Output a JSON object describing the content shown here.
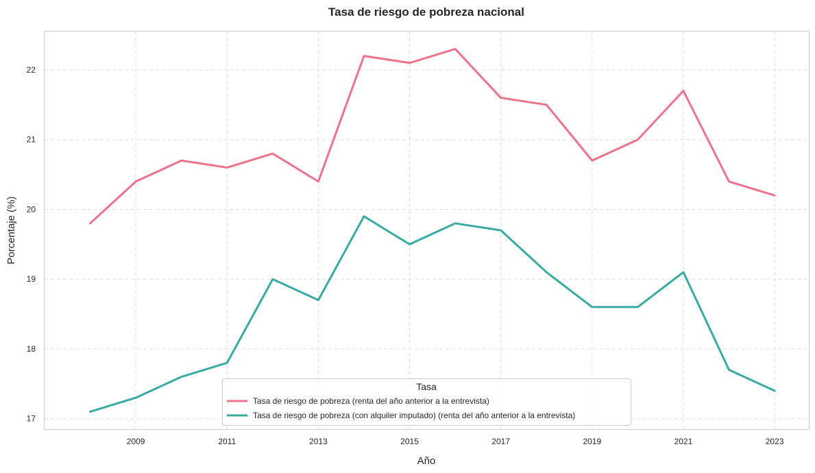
{
  "chart_data": {
    "type": "line",
    "title": "Tasa de riesgo de pobreza nacional",
    "xlabel": "Año",
    "ylabel": "Porcentaje (%)",
    "x": [
      2008,
      2009,
      2010,
      2011,
      2012,
      2013,
      2014,
      2015,
      2016,
      2017,
      2018,
      2019,
      2020,
      2021,
      2022,
      2023
    ],
    "xticks": [
      2009,
      2011,
      2013,
      2015,
      2017,
      2019,
      2021,
      2023
    ],
    "yticks": [
      17,
      18,
      19,
      20,
      21,
      22
    ],
    "xlim": [
      2007,
      2023.75
    ],
    "ylim": [
      16.85,
      22.55
    ],
    "grid": true,
    "legend": {
      "title": "Tasa",
      "placement": "bottom-center"
    },
    "series": [
      {
        "name": "Tasa de riesgo de pobreza (renta del año anterior a la entrevista)",
        "color": "#f0718a",
        "values": [
          19.8,
          20.4,
          20.7,
          20.6,
          20.8,
          20.4,
          22.2,
          22.1,
          22.3,
          21.6,
          21.5,
          20.7,
          21.0,
          21.7,
          20.4,
          20.2
        ]
      },
      {
        "name": "Tasa de riesgo de pobreza (con alquiler imputado) (renta del año anterior a la entrevista)",
        "color": "#36aba1",
        "values": [
          17.1,
          17.3,
          17.6,
          17.8,
          19.0,
          18.7,
          19.9,
          19.5,
          19.8,
          19.7,
          19.1,
          18.6,
          18.6,
          19.1,
          17.7,
          17.4
        ]
      }
    ]
  }
}
